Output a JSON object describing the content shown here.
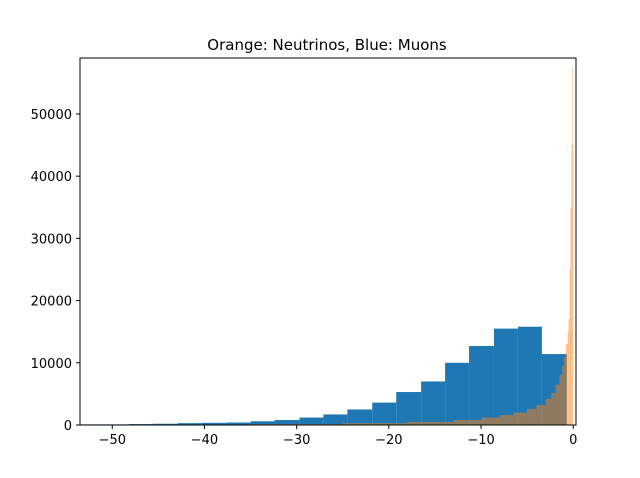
{
  "chart_data": {
    "type": "bar",
    "title": "Orange: Neutrinos, Blue: Muons",
    "xlim": [
      -53.5,
      0.3
    ],
    "ylim": [
      0,
      59000
    ],
    "xticks": [
      -50,
      -40,
      -30,
      -20,
      -10,
      0
    ],
    "yticks": [
      0,
      10000,
      20000,
      30000,
      40000,
      50000
    ],
    "xtick_labels": [
      "−50",
      "−40",
      "−30",
      "−20",
      "−10",
      "0"
    ],
    "ytick_labels": [
      "0",
      "10000",
      "20000",
      "30000",
      "40000",
      "50000"
    ],
    "grid": false,
    "series": [
      {
        "color": "#1f77b4",
        "bin_edges": [
          -53.5,
          -50.8,
          -48.2,
          -45.6,
          -42.9,
          -40.3,
          -37.6,
          -35.0,
          -32.4,
          -29.7,
          -27.1,
          -24.5,
          -21.8,
          -19.2,
          -16.5,
          -13.9,
          -11.3,
          -8.6,
          -6.0,
          -3.4,
          -0.7
        ],
        "counts": [
          100,
          100,
          150,
          200,
          300,
          350,
          400,
          600,
          800,
          1200,
          1700,
          2500,
          3600,
          5300,
          7000,
          10000,
          12700,
          15500,
          15800,
          11400
        ]
      },
      {
        "color": "#ff7f0e",
        "alpha": 0.5,
        "bin_edges": [
          -53.5,
          -45,
          -35,
          -25,
          -18,
          -13,
          -10,
          -8,
          -6.5,
          -5,
          -4,
          -3,
          -2.4,
          -1.9,
          -1.5,
          -1.2,
          -1.0,
          -0.8,
          -0.6,
          -0.5,
          -0.4,
          -0.3,
          -0.2,
          -0.1,
          0.0
        ],
        "counts": [
          30,
          60,
          150,
          300,
          500,
          800,
          1200,
          1600,
          2000,
          2600,
          3200,
          4200,
          5200,
          6500,
          8000,
          9500,
          11000,
          13000,
          15000,
          17000,
          25000,
          35000,
          45000,
          57500
        ]
      }
    ]
  }
}
